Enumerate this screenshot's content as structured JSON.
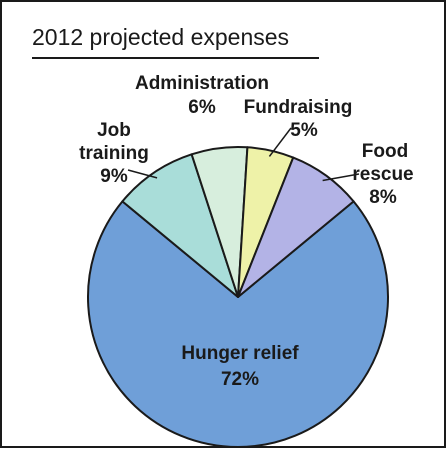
{
  "chart_data": {
    "type": "pie",
    "title": "2012 projected expenses",
    "categories": [
      "Hunger relief",
      "Job training",
      "Administration",
      "Fundraising",
      "Food rescue"
    ],
    "values": [
      72,
      9,
      6,
      5,
      8
    ],
    "value_labels": [
      "72%",
      "9%",
      "6%",
      "5%",
      "8%"
    ],
    "colors": [
      "#6f9fd8",
      "#a9ddd9",
      "#d7eedd",
      "#eef2a8",
      "#b3b3e6"
    ],
    "stroke_color": "#1a1a1a",
    "legend": "none (direct labels)"
  },
  "labels": {
    "hunger_name": "Hunger relief",
    "hunger_value": "72%",
    "job_line1": "Job",
    "job_line2": "training",
    "job_value": "9%",
    "admin_name": "Administration",
    "admin_value": "6%",
    "fund_name": "Fundraising",
    "fund_value": "5%",
    "food_line1": "Food",
    "food_line2": "rescue",
    "food_value": "8%"
  }
}
